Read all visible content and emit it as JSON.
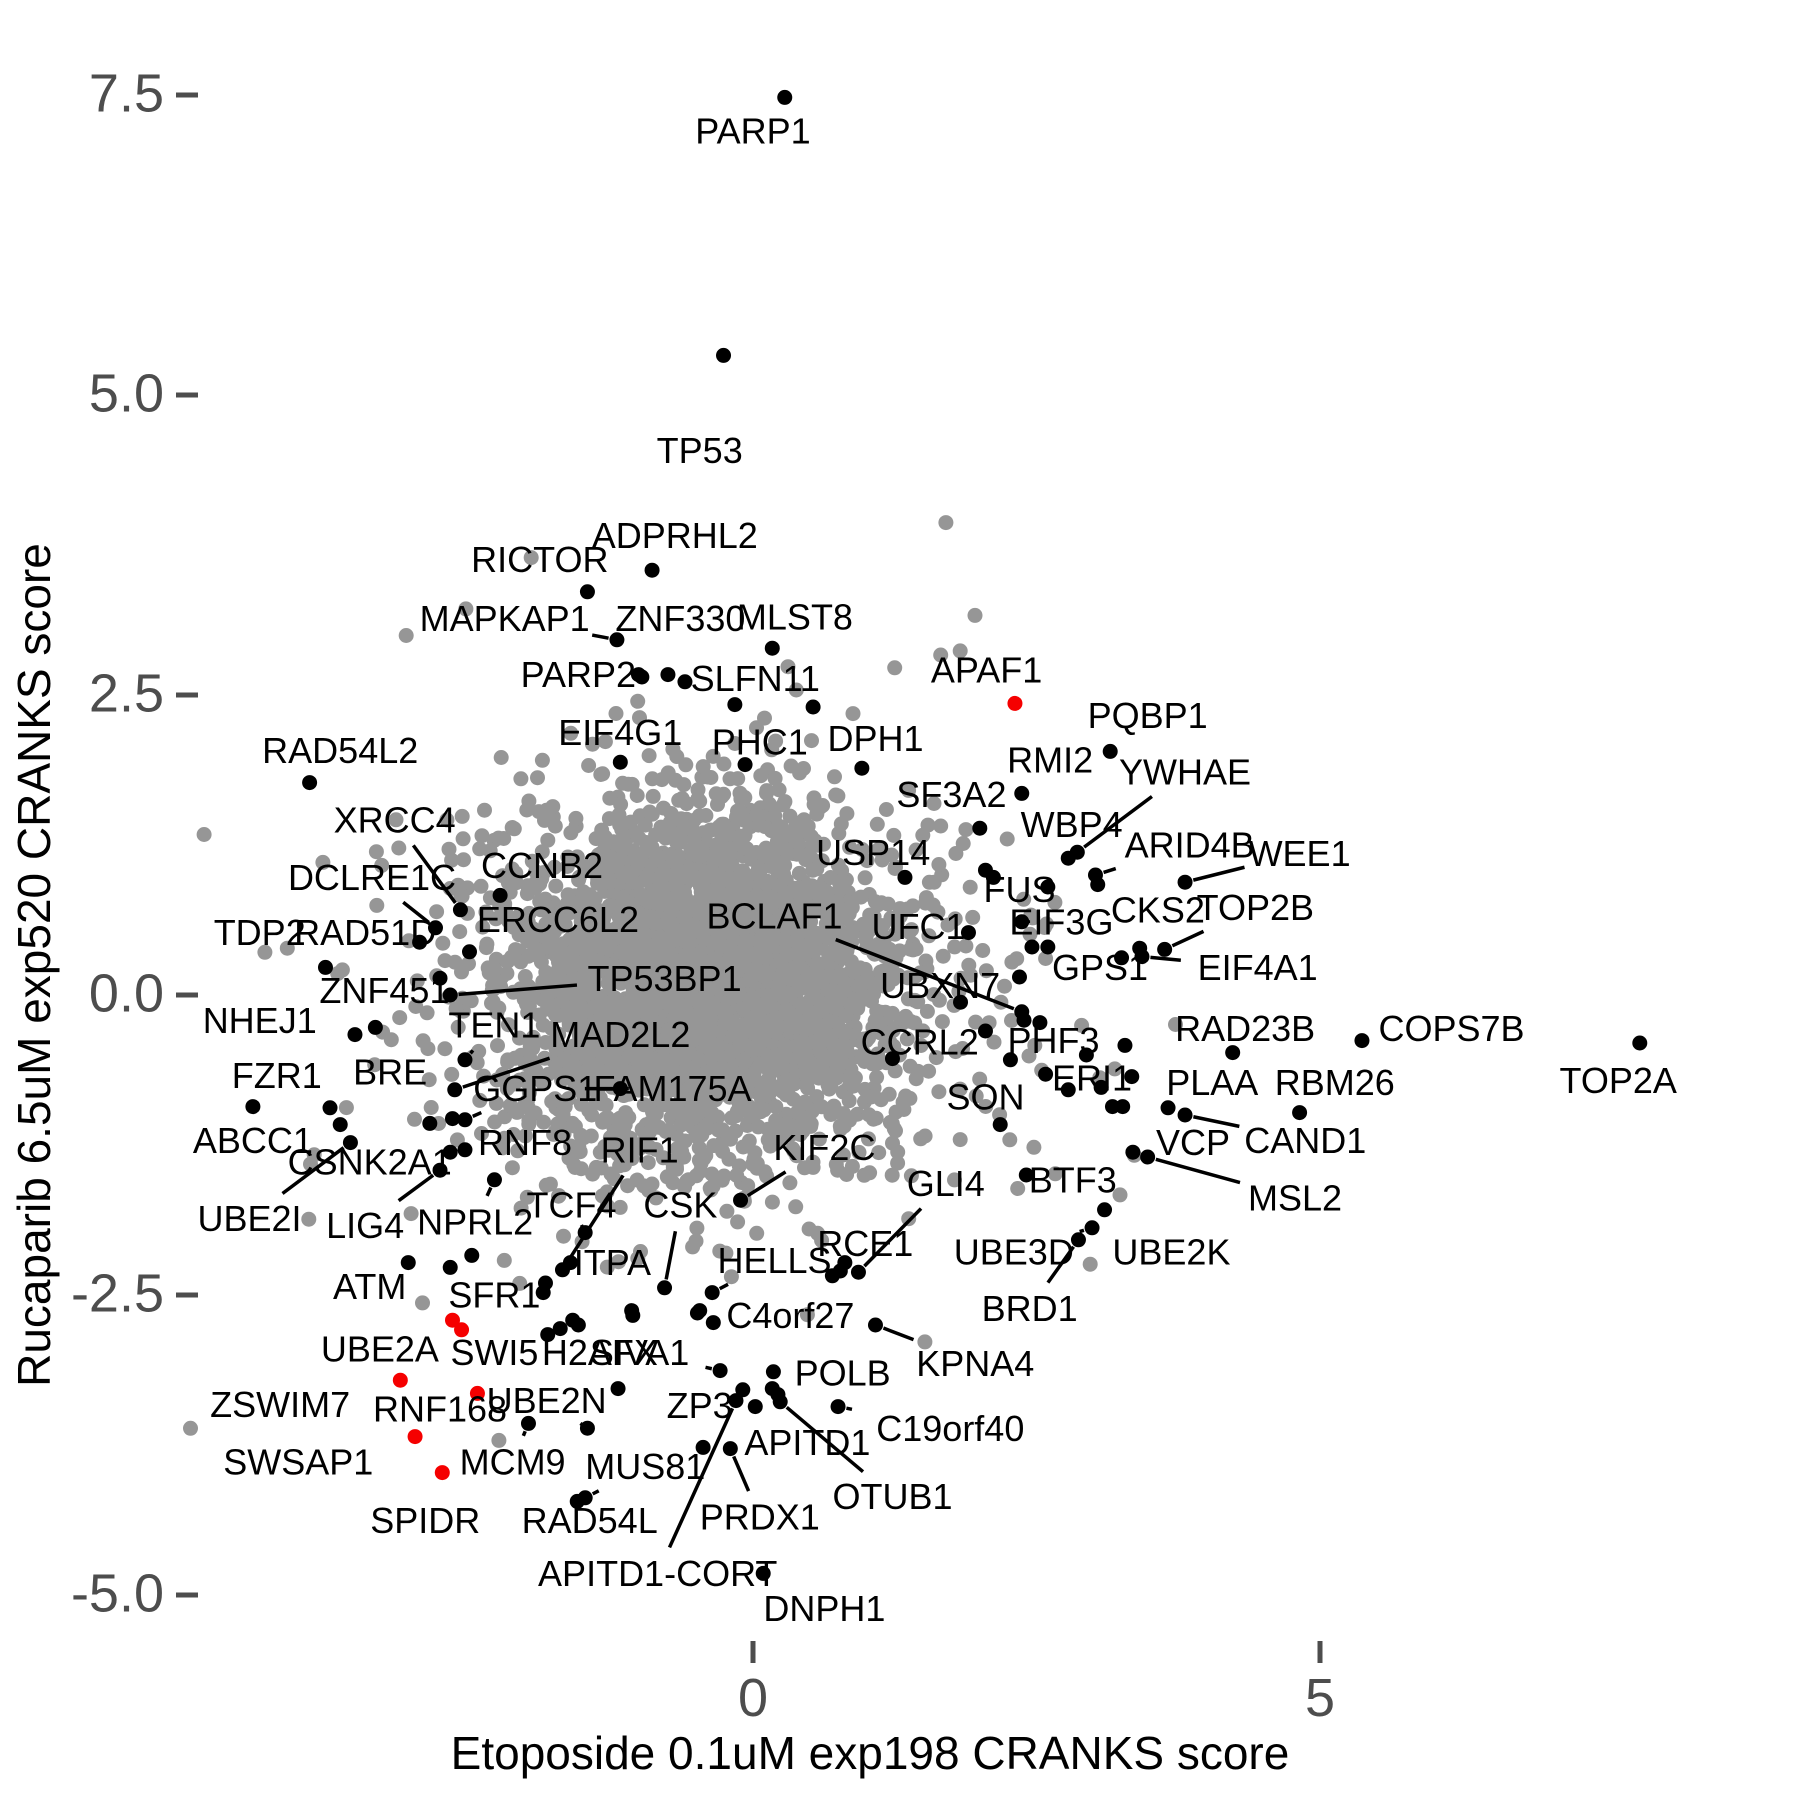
{
  "chart_data": {
    "type": "scatter",
    "title": "",
    "x_axis": {
      "label": "Etoposide 0.1uM exp198 CRANKS score",
      "ticks": [
        "0",
        "5"
      ],
      "tick_values": [
        0,
        5
      ],
      "range": [
        -5.0,
        8.5
      ]
    },
    "y_axis": {
      "label": "Rucaparib 6.5uM exp520 CRANKS score",
      "ticks": [
        "7.5",
        "5.0",
        "2.5",
        "0.0",
        "-2.5",
        "-5.0"
      ],
      "tick_values": [
        7.5,
        5.0,
        2.5,
        0.0,
        -2.5,
        -5.0
      ],
      "range": [
        -5.6,
        7.9
      ]
    },
    "legend": "labeled_points fields: gene, x, y (data coords), lx, ly (label center, data coords), c = point color key (k=black, r=red), ld = leader line drawn",
    "colors": {
      "black": "#000000",
      "red": "#f50000",
      "cloud": "#969696",
      "tick_text": "#4d4d4d",
      "axis_text": "#000000"
    },
    "grid": false,
    "legend_position": "none",
    "labeled_points": [
      {
        "gene": "PARP1",
        "x": 0.28,
        "y": 7.48,
        "lx": 0.0,
        "ly": 7.2,
        "c": "k",
        "ld": 0
      },
      {
        "gene": "TP53",
        "x": -0.26,
        "y": 5.33,
        "lx": -0.47,
        "ly": 4.54,
        "c": "k",
        "ld": 0
      },
      {
        "gene": "ADPRHL2",
        "x": -0.89,
        "y": 3.54,
        "lx": -0.69,
        "ly": 3.83,
        "c": "k",
        "ld": 0
      },
      {
        "gene": "RICTOR",
        "x": -1.46,
        "y": 3.36,
        "lx": -1.88,
        "ly": 3.63,
        "c": "k",
        "ld": 0
      },
      {
        "gene": "MAPKAP1",
        "x": -1.2,
        "y": 2.96,
        "lx": -2.19,
        "ly": 3.14,
        "c": "k",
        "ld": 1
      },
      {
        "gene": "ZNF330",
        "x": -0.75,
        "y": 2.67,
        "lx": -0.64,
        "ly": 3.14,
        "c": "k",
        "ld": 0
      },
      {
        "gene": "MLST8",
        "x": 0.17,
        "y": 2.89,
        "lx": 0.37,
        "ly": 3.15,
        "c": "k",
        "ld": 0
      },
      {
        "gene": "PARP2",
        "x": -1.01,
        "y": 2.67,
        "lx": -1.54,
        "ly": 2.67,
        "c": "k",
        "ld": 0
      },
      {
        "gene": "SLFN11",
        "x": -0.16,
        "y": 2.42,
        "lx": 0.02,
        "ly": 2.64,
        "c": "k",
        "ld": 0
      },
      {
        "gene": "APAF1",
        "x": 2.31,
        "y": 2.43,
        "lx": 2.06,
        "ly": 2.71,
        "c": "r",
        "ld": 0
      },
      {
        "gene": "EIF4G1",
        "x": -1.17,
        "y": 1.94,
        "lx": -1.17,
        "ly": 2.19,
        "c": "k",
        "ld": 0
      },
      {
        "gene": "PHC1",
        "x": -0.07,
        "y": 1.92,
        "lx": 0.06,
        "ly": 2.11,
        "c": "k",
        "ld": 0
      },
      {
        "gene": "DPH1",
        "x": 0.96,
        "y": 1.89,
        "lx": 1.08,
        "ly": 2.14,
        "c": "k",
        "ld": 0
      },
      {
        "gene": "PQBP1",
        "x": 3.15,
        "y": 2.03,
        "lx": 3.48,
        "ly": 2.33,
        "c": "k",
        "ld": 0
      },
      {
        "gene": "RMI2",
        "x": 2.37,
        "y": 1.68,
        "lx": 2.62,
        "ly": 1.96,
        "c": "k",
        "ld": 0
      },
      {
        "gene": "YWHAE",
        "x": 2.86,
        "y": 1.19,
        "lx": 3.81,
        "ly": 1.86,
        "c": "k",
        "ld": 1
      },
      {
        "gene": "SF3A2",
        "x": 2.0,
        "y": 1.39,
        "lx": 1.75,
        "ly": 1.67,
        "c": "k",
        "ld": 0
      },
      {
        "gene": "WBP4",
        "x": 2.78,
        "y": 1.14,
        "lx": 2.81,
        "ly": 1.42,
        "c": "k",
        "ld": 0
      },
      {
        "gene": "ARID4B",
        "x": 3.02,
        "y": 1.0,
        "lx": 3.85,
        "ly": 1.25,
        "c": "k",
        "ld": 1
      },
      {
        "gene": "WEE1",
        "x": 3.81,
        "y": 0.94,
        "lx": 4.82,
        "ly": 1.18,
        "c": "k",
        "ld": 1
      },
      {
        "gene": "USP14",
        "x": 1.34,
        "y": 0.98,
        "lx": 1.06,
        "ly": 1.19,
        "c": "k",
        "ld": 0
      },
      {
        "gene": "FUS",
        "x": 2.6,
        "y": 0.9,
        "lx": 2.35,
        "ly": 0.88,
        "c": "k",
        "ld": 0
      },
      {
        "gene": "EIF3G",
        "x": 2.37,
        "y": 0.61,
        "lx": 2.72,
        "ly": 0.61,
        "c": "k",
        "ld": 0
      },
      {
        "gene": "CKS2",
        "x": 3.41,
        "y": 0.39,
        "lx": 3.57,
        "ly": 0.71,
        "c": "k",
        "ld": 0
      },
      {
        "gene": "TOP2B",
        "x": 3.63,
        "y": 0.38,
        "lx": 4.43,
        "ly": 0.73,
        "c": "k",
        "ld": 1
      },
      {
        "gene": "GPS1",
        "x": 3.25,
        "y": 0.31,
        "lx": 3.06,
        "ly": 0.23,
        "c": "k",
        "ld": 0
      },
      {
        "gene": "EIF4A1",
        "x": 3.43,
        "y": 0.32,
        "lx": 4.45,
        "ly": 0.23,
        "c": "k",
        "ld": 1
      },
      {
        "gene": "RAD54L2",
        "x": -3.91,
        "y": 1.77,
        "lx": -3.64,
        "ly": 2.04,
        "c": "k",
        "ld": 0
      },
      {
        "gene": "XRCC4",
        "x": -2.58,
        "y": 0.71,
        "lx": -3.16,
        "ly": 1.46,
        "c": "k",
        "ld": 1
      },
      {
        "gene": "DCLRE1C",
        "x": -2.8,
        "y": 0.56,
        "lx": -3.36,
        "ly": 0.98,
        "c": "k",
        "ld": 1
      },
      {
        "gene": "CCNB2",
        "x": -2.23,
        "y": 0.83,
        "lx": -1.86,
        "ly": 1.08,
        "c": "k",
        "ld": 0
      },
      {
        "gene": "ERCC6L2",
        "x": -2.5,
        "y": 0.36,
        "lx": -1.72,
        "ly": 0.63,
        "c": "k",
        "ld": 0
      },
      {
        "gene": "TDP2",
        "x": -3.77,
        "y": 0.23,
        "lx": -4.35,
        "ly": 0.52,
        "c": "k",
        "ld": 0
      },
      {
        "gene": "RAD51D",
        "x": -2.94,
        "y": 0.44,
        "lx": -3.42,
        "ly": 0.52,
        "c": "k",
        "ld": 0
      },
      {
        "gene": "ZNF451",
        "x": -2.76,
        "y": 0.14,
        "lx": -3.25,
        "ly": 0.04,
        "c": "k",
        "ld": 0
      },
      {
        "gene": "TP53BP1",
        "x": -2.67,
        "y": 0.0,
        "lx": -0.78,
        "ly": 0.14,
        "c": "k",
        "ld": 1
      },
      {
        "gene": "NHEJ1",
        "x": -3.51,
        "y": -0.33,
        "lx": -4.35,
        "ly": -0.21,
        "c": "k",
        "ld": 0
      },
      {
        "gene": "TEN1",
        "x": -2.54,
        "y": -0.54,
        "lx": -2.28,
        "ly": -0.25,
        "c": "k",
        "ld": 1
      },
      {
        "gene": "MAD2L2",
        "x": -2.63,
        "y": -0.79,
        "lx": -1.17,
        "ly": -0.33,
        "c": "k",
        "ld": 1
      },
      {
        "gene": "FZR1",
        "x": -4.41,
        "y": -0.93,
        "lx": -4.2,
        "ly": -0.67,
        "c": "k",
        "ld": 0
      },
      {
        "gene": "BRE",
        "x": -3.73,
        "y": -0.94,
        "lx": -3.2,
        "ly": -0.64,
        "c": "k",
        "ld": 0
      },
      {
        "gene": "ABCC1",
        "x": -3.64,
        "y": -1.08,
        "lx": -4.41,
        "ly": -1.21,
        "c": "k",
        "ld": 0
      },
      {
        "gene": "GGPS1",
        "x": -2.54,
        "y": -1.04,
        "lx": -1.92,
        "ly": -0.78,
        "c": "k",
        "ld": 1
      },
      {
        "gene": "FAM175A",
        "x": -1.17,
        "y": -0.78,
        "lx": -0.71,
        "ly": -0.78,
        "c": "k",
        "ld": 1
      },
      {
        "gene": "RNF8",
        "x": -2.54,
        "y": -1.29,
        "lx": -2.01,
        "ly": -1.23,
        "c": "k",
        "ld": 0
      },
      {
        "gene": "CSNK2A1",
        "x": -2.67,
        "y": -1.31,
        "lx": -3.38,
        "ly": -1.39,
        "c": "k",
        "ld": 0
      },
      {
        "gene": "UBE2I",
        "x": -3.55,
        "y": -1.23,
        "lx": -4.44,
        "ly": -1.86,
        "c": "k",
        "ld": 1
      },
      {
        "gene": "LIG4",
        "x": -2.76,
        "y": -1.46,
        "lx": -3.42,
        "ly": -1.92,
        "c": "k",
        "ld": 1
      },
      {
        "gene": "NPRL2",
        "x": -2.28,
        "y": -1.54,
        "lx": -2.45,
        "ly": -1.89,
        "c": "k",
        "ld": 1
      },
      {
        "gene": "RIF1",
        "x": -1.68,
        "y": -2.29,
        "lx": -1.0,
        "ly": -1.29,
        "c": "k",
        "ld": 1
      },
      {
        "gene": "TCF4",
        "x": -1.48,
        "y": -1.98,
        "lx": -1.6,
        "ly": -1.75,
        "c": "k",
        "ld": 1
      },
      {
        "gene": "CSK",
        "x": -0.78,
        "y": -2.44,
        "lx": -0.64,
        "ly": -1.75,
        "c": "k",
        "ld": 1
      },
      {
        "gene": "KIF2C",
        "x": -0.11,
        "y": -1.71,
        "lx": 0.63,
        "ly": -1.27,
        "c": "k",
        "ld": 1
      },
      {
        "gene": "ITPA",
        "x": -1.07,
        "y": -2.63,
        "lx": -1.24,
        "ly": -2.23,
        "c": "k",
        "ld": 0
      },
      {
        "gene": "HELLS",
        "x": -0.36,
        "y": -2.48,
        "lx": 0.19,
        "ly": -2.21,
        "c": "k",
        "ld": 1
      },
      {
        "gene": "SON",
        "x": 2.18,
        "y": -1.08,
        "lx": 2.05,
        "ly": -0.85,
        "c": "k",
        "ld": 0
      },
      {
        "gene": "ERI1",
        "x": 2.78,
        "y": -0.79,
        "lx": 2.99,
        "ly": -0.69,
        "c": "k",
        "ld": 0
      },
      {
        "gene": "PHF3",
        "x": 2.27,
        "y": -0.54,
        "lx": 2.65,
        "ly": -0.38,
        "c": "k",
        "ld": 0
      },
      {
        "gene": "CCRL2",
        "x": 1.23,
        "y": -0.53,
        "lx": 1.47,
        "ly": -0.39,
        "c": "k",
        "ld": 0
      },
      {
        "gene": "RAD23B",
        "x": 4.23,
        "y": -0.48,
        "lx": 4.34,
        "ly": -0.28,
        "c": "k",
        "ld": 0
      },
      {
        "gene": "COPS7B",
        "x": 5.37,
        "y": -0.38,
        "lx": 6.16,
        "ly": -0.28,
        "c": "k",
        "ld": 0
      },
      {
        "gene": "TOP2A",
        "x": 7.82,
        "y": -0.4,
        "lx": 7.63,
        "ly": -0.71,
        "c": "k",
        "ld": 0
      },
      {
        "gene": "PLAA",
        "x": 3.66,
        "y": -0.94,
        "lx": 4.05,
        "ly": -0.73,
        "c": "k",
        "ld": 0
      },
      {
        "gene": "RBM26",
        "x": 4.82,
        "y": -0.98,
        "lx": 5.13,
        "ly": -0.73,
        "c": "k",
        "ld": 0
      },
      {
        "gene": "CAND1",
        "x": 3.81,
        "y": -1.0,
        "lx": 4.87,
        "ly": -1.21,
        "c": "k",
        "ld": 1
      },
      {
        "gene": "VCP",
        "x": 3.35,
        "y": -1.31,
        "lx": 3.88,
        "ly": -1.23,
        "c": "k",
        "ld": 0
      },
      {
        "gene": "MSL2",
        "x": 3.48,
        "y": -1.35,
        "lx": 4.78,
        "ly": -1.69,
        "c": "k",
        "ld": 1
      },
      {
        "gene": "GLI4",
        "x": 0.93,
        "y": -2.31,
        "lx": 1.7,
        "ly": -1.57,
        "c": "k",
        "ld": 1
      },
      {
        "gene": "RCE1",
        "x": 0.81,
        "y": -2.23,
        "lx": 0.99,
        "ly": -2.07,
        "c": "k",
        "ld": 0
      },
      {
        "gene": "BTF3",
        "x": 2.41,
        "y": -1.5,
        "lx": 2.82,
        "ly": -1.54,
        "c": "k",
        "ld": 0
      },
      {
        "gene": "UBE3D",
        "x": 2.99,
        "y": -1.94,
        "lx": 2.3,
        "ly": -2.14,
        "c": "k",
        "ld": 1
      },
      {
        "gene": "UBE2K",
        "x": 3.1,
        "y": -1.79,
        "lx": 3.69,
        "ly": -2.14,
        "c": "k",
        "ld": 0
      },
      {
        "gene": "BRD1",
        "x": 2.87,
        "y": -2.04,
        "lx": 2.44,
        "ly": -2.61,
        "c": "k",
        "ld": 1
      },
      {
        "gene": "ATM",
        "x": -3.04,
        "y": -2.23,
        "lx": -3.38,
        "ly": -2.43,
        "c": "k",
        "ld": 0
      },
      {
        "gene": "SFR1",
        "x": -1.83,
        "y": -2.4,
        "lx": -2.28,
        "ly": -2.5,
        "c": "k",
        "ld": 0
      },
      {
        "gene": "UBE2A",
        "x": -2.65,
        "y": -2.71,
        "lx": -3.29,
        "ly": -2.95,
        "c": "r",
        "ld": 0
      },
      {
        "gene": "SWI5",
        "x": -1.81,
        "y": -2.83,
        "lx": -2.28,
        "ly": -2.98,
        "c": "k",
        "ld": 0
      },
      {
        "gene": "H2AFX",
        "x": -1.59,
        "y": -2.71,
        "lx": -1.35,
        "ly": -2.98,
        "c": "k",
        "ld": 0
      },
      {
        "gene": "SIVA1",
        "x": -0.29,
        "y": -3.13,
        "lx": -1.0,
        "ly": -2.98,
        "c": "k",
        "ld": 1
      },
      {
        "gene": "ZSWIM7",
        "x": -3.11,
        "y": -3.21,
        "lx": -4.17,
        "ly": -3.41,
        "c": "r",
        "ld": 0
      },
      {
        "gene": "RNF168",
        "x": -2.43,
        "y": -3.32,
        "lx": -2.76,
        "ly": -3.45,
        "c": "r",
        "ld": 0
      },
      {
        "gene": "UBE2N",
        "x": -1.46,
        "y": -3.61,
        "lx": -1.82,
        "ly": -3.38,
        "c": "k",
        "ld": 1
      },
      {
        "gene": "SWSAP1",
        "x": -2.98,
        "y": -3.68,
        "lx": -4.01,
        "ly": -3.89,
        "c": "r",
        "ld": 0
      },
      {
        "gene": "MCM9",
        "x": -1.98,
        "y": -3.57,
        "lx": -2.12,
        "ly": -3.89,
        "c": "k",
        "ld": 1
      },
      {
        "gene": "MUS81",
        "x": -1.48,
        "y": -4.19,
        "lx": -0.95,
        "ly": -3.93,
        "c": "k",
        "ld": 1
      },
      {
        "gene": "RAD54L",
        "x": -1.55,
        "y": -4.22,
        "lx": -1.44,
        "ly": -4.38,
        "c": "k",
        "ld": 0
      },
      {
        "gene": "SPIDR",
        "x": -2.74,
        "y": -3.98,
        "lx": -2.89,
        "ly": -4.38,
        "c": "r",
        "ld": 0
      },
      {
        "gene": "ZP3",
        "x": -0.09,
        "y": -3.29,
        "lx": -0.47,
        "ly": -3.42,
        "c": "k",
        "ld": 0
      },
      {
        "gene": "APITD1",
        "x": 0.02,
        "y": -3.43,
        "lx": 0.48,
        "ly": -3.73,
        "c": "k",
        "ld": 0
      },
      {
        "gene": "APITD1-CORT",
        "x": -0.15,
        "y": -3.38,
        "lx": -0.84,
        "ly": -4.82,
        "c": "k",
        "ld": 1
      },
      {
        "gene": "PRDX1",
        "x": -0.2,
        "y": -3.78,
        "lx": 0.06,
        "ly": -4.35,
        "c": "k",
        "ld": 1
      },
      {
        "gene": "POLB",
        "x": 0.18,
        "y": -3.14,
        "lx": 0.79,
        "ly": -3.15,
        "c": "k",
        "ld": 0
      },
      {
        "gene": "OTUB1",
        "x": 0.24,
        "y": -3.39,
        "lx": 1.23,
        "ly": -4.18,
        "c": "k",
        "ld": 1
      },
      {
        "gene": "C19orf40",
        "x": 0.75,
        "y": -3.43,
        "lx": 1.74,
        "ly": -3.61,
        "c": "k",
        "ld": 1
      },
      {
        "gene": "C4orf27",
        "x": 0.7,
        "y": -2.34,
        "lx": 0.33,
        "ly": -2.67,
        "c": "k",
        "ld": 0
      },
      {
        "gene": "KPNA4",
        "x": 1.08,
        "y": -2.75,
        "lx": 1.96,
        "ly": -3.07,
        "c": "k",
        "ld": 1
      },
      {
        "gene": "DNPH1",
        "x": 0.09,
        "y": -4.82,
        "lx": 0.63,
        "ly": -5.11,
        "c": "k",
        "ld": 0
      },
      {
        "gene": "UBXN7",
        "x": 1.83,
        "y": -0.06,
        "lx": 1.65,
        "ly": 0.08,
        "c": "k",
        "ld": 0
      },
      {
        "gene": "BCLAF1",
        "x": 2.37,
        "y": -0.14,
        "lx": 0.19,
        "ly": 0.66,
        "c": "k",
        "ld": 1
      },
      {
        "gene": "UFC1",
        "x": 1.9,
        "y": 0.52,
        "lx": 1.46,
        "ly": 0.57,
        "c": "k",
        "ld": 0
      }
    ],
    "extra_points": [
      [
        -0.98,
        2.65
      ],
      [
        -0.6,
        2.61
      ],
      [
        0.53,
        2.4
      ],
      [
        2.05,
        1.04
      ],
      [
        2.12,
        0.98
      ],
      [
        3.04,
        0.92
      ],
      [
        2.46,
        0.4
      ],
      [
        2.6,
        0.4
      ],
      [
        2.35,
        0.15
      ],
      [
        3.28,
        -0.42
      ],
      [
        2.94,
        -0.5
      ],
      [
        2.58,
        -0.66
      ],
      [
        3.07,
        -0.77
      ],
      [
        3.34,
        -0.68
      ],
      [
        3.17,
        -0.93
      ],
      [
        3.26,
        -0.93
      ],
      [
        -3.33,
        -0.27
      ],
      [
        -2.85,
        -1.07
      ],
      [
        -2.65,
        -1.03
      ],
      [
        -2.67,
        -2.27
      ],
      [
        -2.48,
        -2.17
      ],
      [
        -1.85,
        -2.48
      ],
      [
        -1.7,
        -2.78
      ],
      [
        -1.54,
        -2.75
      ],
      [
        -1.06,
        -2.67
      ],
      [
        -0.49,
        -2.65
      ],
      [
        -0.35,
        -2.73
      ],
      [
        -0.47,
        -2.63
      ],
      [
        -1.19,
        -3.28
      ],
      [
        -0.44,
        -3.77
      ],
      [
        0.17,
        -3.28
      ],
      [
        0.22,
        -3.33
      ],
      [
        0.77,
        -2.3
      ],
      [
        2.53,
        -0.23
      ],
      [
        2.39,
        -0.21
      ],
      [
        -1.61,
        -2.23
      ],
      [
        2.05,
        -0.3
      ]
    ],
    "extra_red_points": [
      [
        -2.57,
        -2.79
      ]
    ],
    "background_cloud": {
      "count": 3000,
      "cx": -0.45,
      "cy": 0.1,
      "sdx": 0.85,
      "sdy": 0.7,
      "halo_count": 500,
      "halo_sdx": 1.5,
      "halo_sdy": 1.15,
      "seed": 42
    }
  }
}
